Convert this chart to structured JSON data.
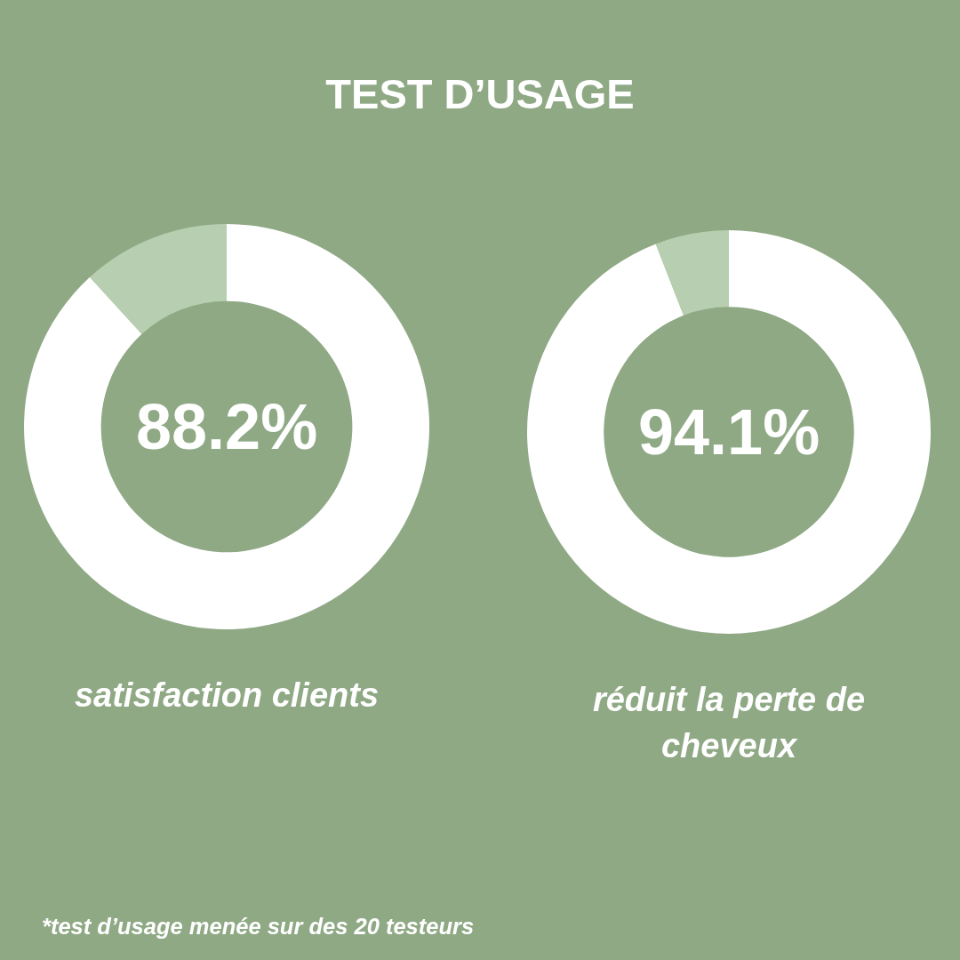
{
  "chart_data": [
    {
      "type": "other",
      "title": "TEST D’USAGE",
      "annotations": [
        "*test d’usage menée sur des 20 testeurs"
      ]
    },
    {
      "type": "donut",
      "title": "satisfaction clients",
      "categories": [
        null,
        null
      ],
      "values": [
        88.2,
        11.8
      ],
      "colors": [
        "#ffffff",
        "#b8ceb0"
      ],
      "value_labels": [
        "88.2%",
        null
      ]
    },
    {
      "type": "donut",
      "title": "réduit la perte de cheveux",
      "categories": [
        null,
        null
      ],
      "values": [
        94.1,
        5.9
      ],
      "colors": [
        "#ffffff",
        "#b8ceb0"
      ],
      "value_labels": [
        "94.1%",
        null
      ]
    }
  ]
}
